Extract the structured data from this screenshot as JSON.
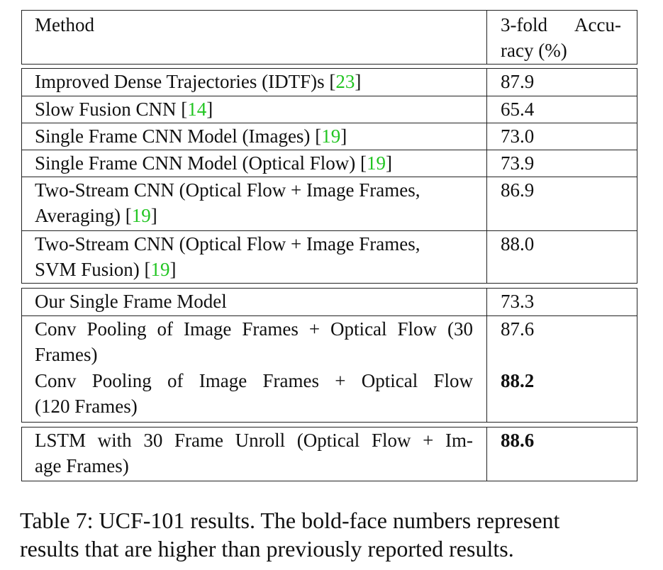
{
  "table": {
    "header": {
      "method": "Method",
      "accuracy_line1": "3-fold Accu-",
      "accuracy_line2": "racy (%)"
    },
    "rows": [
      {
        "method": "Improved Dense Trajectories (IDTF)s",
        "cite": "23",
        "accuracy": "87.9"
      },
      {
        "method": "Slow Fusion CNN",
        "cite": "14",
        "accuracy": "65.4"
      },
      {
        "method": "Single Frame CNN Model (Images)",
        "cite": "19",
        "accuracy": "73.0"
      },
      {
        "method": "Single Frame CNN Model (Optical Flow)",
        "cite": "19",
        "accuracy": "73.9"
      },
      {
        "method_line1": "Two-Stream CNN (Optical Flow + Image Frames,",
        "method_line2": "Averaging)",
        "cite": "19",
        "accuracy": "86.9"
      },
      {
        "method_line1": "Two-Stream CNN (Optical Flow + Image Frames,",
        "method_line2": "SVM Fusion)",
        "cite": "19",
        "accuracy": "88.0"
      },
      {
        "method": "Our Single Frame Model",
        "accuracy": "73.3"
      },
      {
        "method_line1": "Conv Pooling of Image Frames + Optical Flow (30",
        "method_line2": "Frames)",
        "accuracy": "87.6"
      },
      {
        "method_line1": "Conv Pooling of Image Frames + Optical Flow",
        "method_line2": "(120 Frames)",
        "accuracy": "88.2"
      },
      {
        "method_line1": "LSTM with 30 Frame Unroll (Optical Flow + Im-",
        "method_line2": "age Frames)",
        "accuracy": "88.6"
      }
    ]
  },
  "caption": {
    "line1": "Table 7: UCF-101 results. The bold-face numbers represent",
    "line2": "results that are higher than previously reported results."
  },
  "colors": {
    "citation": "#22c522",
    "rule": "#222222"
  }
}
